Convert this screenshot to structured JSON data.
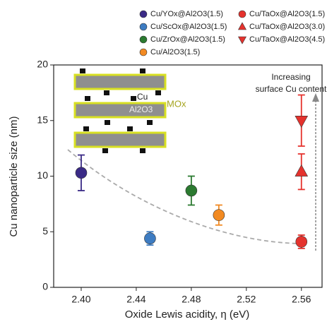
{
  "chart_data": {
    "type": "scatter",
    "x_label": "Oxide Lewis acidity, η (eV)",
    "y_label": "Cu nanoparticle size (nm)",
    "xlim": [
      2.38,
      2.575
    ],
    "ylim": [
      0,
      20
    ],
    "xticks": [
      {
        "value": 2.4,
        "label": "2.40"
      },
      {
        "value": 2.44,
        "label": "2.44"
      },
      {
        "value": 2.48,
        "label": "2.48"
      },
      {
        "value": 2.52,
        "label": "2.52"
      },
      {
        "value": 2.56,
        "label": "2.56"
      }
    ],
    "yticks": [
      0,
      5,
      10,
      15,
      20
    ],
    "series": [
      {
        "name": "Cu/YOx@Al2O3(1.5)",
        "color": "#3a2a86",
        "marker": "circle",
        "x": [
          2.4
        ],
        "values": [
          10.3
        ],
        "errors": [
          1.6
        ]
      },
      {
        "name": "Cu/ScOx@Al2O3(1.5)",
        "color": "#3d7cc2",
        "marker": "circle",
        "x": [
          2.45
        ],
        "values": [
          4.4
        ],
        "errors": [
          0.6
        ]
      },
      {
        "name": "Cu/ZrOx@Al2O3(1.5)",
        "color": "#2b7a30",
        "marker": "circle",
        "x": [
          2.48
        ],
        "values": [
          8.7
        ],
        "errors": [
          1.3
        ]
      },
      {
        "name": "Cu/Al2O3(1.5)",
        "color": "#f28a22",
        "marker": "circle",
        "x": [
          2.5
        ],
        "values": [
          6.5
        ],
        "errors": [
          0.9
        ]
      },
      {
        "name": "Cu/TaOx@Al2O3(1.5)",
        "color": "#e5322d",
        "marker": "circle",
        "x": [
          2.56
        ],
        "values": [
          4.1
        ],
        "errors": [
          0.6
        ]
      },
      {
        "name": "Cu/TaOx@Al2O3(3.0)",
        "color": "#e5322d",
        "marker": "triangle-up",
        "x": [
          2.56
        ],
        "values": [
          10.4
        ],
        "errors": [
          1.6
        ]
      },
      {
        "name": "Cu/TaOx@Al2O3(4.5)",
        "color": "#e5322d",
        "marker": "triangle-down",
        "x": [
          2.56
        ],
        "values": [
          15.0
        ],
        "errors": [
          2.3
        ]
      }
    ],
    "annotations": {
      "arrow_text_1": "Increasing",
      "arrow_text_2": "surface Cu content",
      "inset_cu": "Cu",
      "inset_support": "Al2O3",
      "inset_mox": "MOx"
    }
  }
}
